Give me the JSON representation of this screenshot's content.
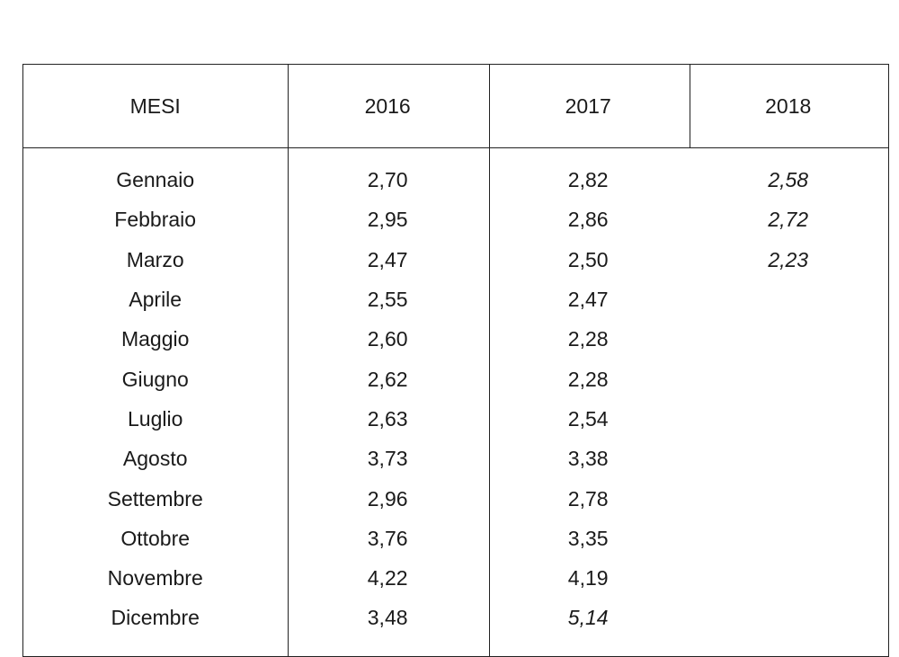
{
  "table": {
    "headers": [
      "MESI",
      "2016",
      "2017",
      "2018"
    ],
    "rows": [
      {
        "month": "Gennaio",
        "y2016": "2,70",
        "y2017": "2,82",
        "y2018": "2,58"
      },
      {
        "month": "Febbraio",
        "y2016": "2,95",
        "y2017": "2,86",
        "y2018": "2,72"
      },
      {
        "month": "Marzo",
        "y2016": "2,47",
        "y2017": "2,50",
        "y2018": "2,23"
      },
      {
        "month": "Aprile",
        "y2016": "2,55",
        "y2017": "2,47",
        "y2018": ""
      },
      {
        "month": "Maggio",
        "y2016": "2,60",
        "y2017": "2,28",
        "y2018": ""
      },
      {
        "month": "Giugno",
        "y2016": "2,62",
        "y2017": "2,28",
        "y2018": ""
      },
      {
        "month": "Luglio",
        "y2016": "2,63",
        "y2017": "2,54",
        "y2018": ""
      },
      {
        "month": "Agosto",
        "y2016": "3,73",
        "y2017": "3,38",
        "y2018": ""
      },
      {
        "month": "Settembre",
        "y2016": "2,96",
        "y2017": "2,78",
        "y2018": ""
      },
      {
        "month": "Ottobre",
        "y2016": "3,76",
        "y2017": "3,35",
        "y2018": ""
      },
      {
        "month": "Novembre",
        "y2016": "4,22",
        "y2017": "4,19",
        "y2018": ""
      },
      {
        "month": "Dicembre",
        "y2016": "3,48",
        "y2017": "5,14",
        "y2018": ""
      }
    ]
  }
}
